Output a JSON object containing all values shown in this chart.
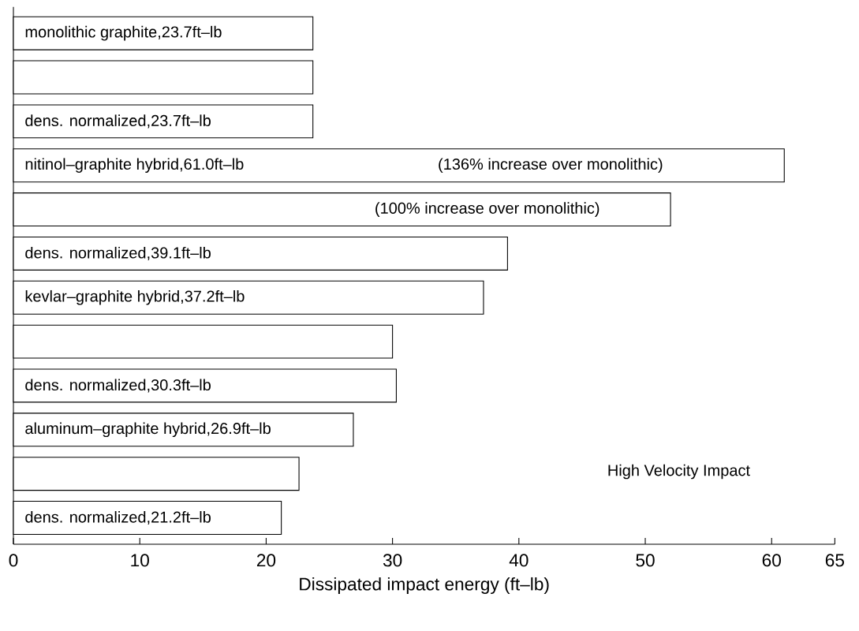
{
  "chart_data": {
    "type": "bar",
    "orientation": "horizontal",
    "xlabel": "Dissipated impact energy (ft–lb)",
    "categories": [
      null,
      null,
      null,
      null,
      null,
      null,
      null,
      null,
      null,
      null,
      null,
      null
    ],
    "values": [
      23.7,
      23.7,
      23.7,
      61.0,
      52,
      39.1,
      37.2,
      30,
      30.3,
      26.9,
      22.6,
      21.2
    ],
    "value_labels": [
      "monolithic graphite,23.7ft–lb",
      null,
      "dens. normalized,23.7ft–lb",
      "nitinol–graphite hybrid,61.0ft–lb",
      null,
      "dens. normalized,39.1ft–lb",
      "kevlar–graphite hybrid,37.2ft–lb",
      null,
      "dens. normalized,30.3ft–lb",
      "aluminum–graphite hybrid,26.9ft–lb",
      null,
      "dens. normalized,21.2ft–lb"
    ],
    "color": "#ffffff",
    "xlim": [
      0,
      65
    ],
    "xticks": [
      0,
      10,
      20,
      30,
      40,
      50,
      60,
      65
    ],
    "annotations": [
      "(136% increase over monolithic)",
      "(100% increase over monolithic)",
      "High Velocity Impact"
    ],
    "grid": false
  }
}
